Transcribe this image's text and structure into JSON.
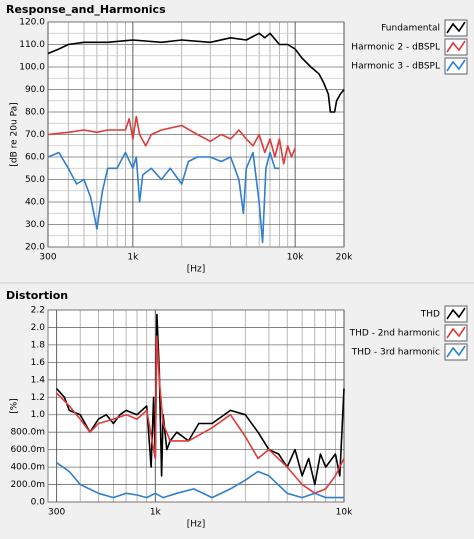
{
  "chart_data": [
    {
      "type": "line",
      "title": "Response_and_Harmonics",
      "xlabel": "[Hz]",
      "ylabel": "[dB re 20u Pa]",
      "xscale": "log",
      "xlim": [
        300,
        20000
      ],
      "ylim": [
        20,
        120
      ],
      "xticks": [
        300,
        {
          "value": 1000,
          "label": "1k"
        },
        {
          "value": 10000,
          "label": "10k"
        },
        {
          "value": 20000,
          "label": "20k"
        }
      ],
      "yticks": [
        {
          "value": 20,
          "label": "20.0"
        },
        {
          "value": 30,
          "label": "30.0"
        },
        {
          "value": 40,
          "label": "40.0"
        },
        {
          "value": 50,
          "label": "50.0"
        },
        {
          "value": 60,
          "label": "60.0"
        },
        {
          "value": 70,
          "label": "70.0"
        },
        {
          "value": 80,
          "label": "80.0"
        },
        {
          "value": 90,
          "label": "90.0"
        },
        {
          "value": 100,
          "label": "100.0"
        },
        {
          "value": 110,
          "label": "110.0"
        },
        {
          "value": 120,
          "label": "120.0"
        }
      ],
      "xgrid_minor": [
        400,
        500,
        600,
        700,
        800,
        900,
        2000,
        3000,
        4000,
        5000,
        6000,
        7000,
        8000,
        9000
      ],
      "ygrid_minor": [
        25,
        35,
        45,
        55,
        65,
        75,
        85,
        95,
        105,
        115
      ],
      "grid": true,
      "legend": "outside-right",
      "series": [
        {
          "name": "Fundamental",
          "color": "#000000",
          "x": [
            300,
            350,
            400,
            500,
            700,
            1000,
            1500,
            2000,
            3000,
            4000,
            5000,
            6000,
            6500,
            7000,
            8000,
            9000,
            10000,
            11000,
            12500,
            14000,
            15000,
            16000,
            16500,
            17500,
            18000,
            19000,
            20000
          ],
          "values": [
            106,
            108,
            110,
            111,
            111,
            112,
            111,
            112,
            111,
            113,
            112,
            115,
            113,
            115,
            110,
            110,
            108,
            104,
            100,
            97,
            93,
            88,
            80,
            80,
            85,
            88,
            90
          ]
        },
        {
          "name": "Harmonic 2 - dBSPL",
          "color": "#e03a3a",
          "x": [
            300,
            400,
            500,
            600,
            700,
            800,
            900,
            950,
            1000,
            1050,
            1100,
            1200,
            1300,
            1500,
            2000,
            2500,
            3000,
            3500,
            4000,
            4500,
            5000,
            5500,
            6000,
            6500,
            7000,
            7500,
            8000,
            8500,
            9000,
            9500,
            10000
          ],
          "values": [
            70,
            71,
            72,
            71,
            72,
            72,
            72,
            77,
            68,
            78,
            70,
            65,
            70,
            72,
            74,
            70,
            67,
            70,
            68,
            72,
            68,
            65,
            70,
            62,
            68,
            60,
            68,
            57,
            65,
            60,
            64
          ]
        },
        {
          "name": "Harmonic 3 - dBSPL",
          "color": "#2f7fcf",
          "x": [
            300,
            350,
            400,
            450,
            500,
            550,
            600,
            650,
            700,
            800,
            900,
            1000,
            1050,
            1100,
            1150,
            1300,
            1500,
            1700,
            2000,
            2200,
            2500,
            3000,
            3500,
            4000,
            4500,
            4800,
            5000,
            5500,
            6000,
            6300,
            6600,
            7000,
            7500,
            8000
          ],
          "values": [
            60,
            62,
            55,
            48,
            50,
            42,
            28,
            45,
            55,
            55,
            62,
            55,
            60,
            40,
            52,
            55,
            50,
            55,
            48,
            58,
            60,
            60,
            58,
            60,
            50,
            35,
            55,
            62,
            40,
            22,
            55,
            62,
            55,
            55
          ]
        }
      ]
    },
    {
      "type": "line",
      "title": "Distortion",
      "xlabel": "[Hz]",
      "ylabel": "[%]",
      "xscale": "log",
      "xlim": [
        270,
        10000
      ],
      "ylim": [
        0,
        2.2
      ],
      "xticks": [
        300,
        {
          "value": 1000,
          "label": "1k"
        },
        {
          "value": 10000,
          "label": "10k"
        }
      ],
      "yticks": [
        {
          "value": 0,
          "label": "0.0"
        },
        {
          "value": 0.2,
          "label": "200.0m"
        },
        {
          "value": 0.4,
          "label": "400.0m"
        },
        {
          "value": 0.6,
          "label": "600.0m"
        },
        {
          "value": 0.8,
          "label": "800.0m"
        },
        {
          "value": 1,
          "label": "1.0"
        },
        {
          "value": 1.2,
          "label": "1.2"
        },
        {
          "value": 1.4,
          "label": "1.4"
        },
        {
          "value": 1.6,
          "label": "1.6"
        },
        {
          "value": 1.8,
          "label": "1.8"
        },
        {
          "value": 2,
          "label": "2.0"
        },
        {
          "value": 2.2,
          "label": "2.2"
        }
      ],
      "xgrid_minor": [
        400,
        500,
        600,
        700,
        800,
        900,
        2000,
        3000,
        4000,
        5000,
        6000,
        7000,
        8000,
        9000
      ],
      "ygrid_minor": [],
      "grid": true,
      "legend": "outside-right",
      "series": [
        {
          "name": "THD",
          "color": "#000000",
          "x": [
            300,
            330,
            350,
            400,
            450,
            500,
            550,
            600,
            650,
            700,
            800,
            900,
            950,
            980,
            1000,
            1020,
            1050,
            1080,
            1100,
            1150,
            1200,
            1300,
            1500,
            1700,
            2000,
            2500,
            3000,
            3500,
            4000,
            4500,
            5000,
            5500,
            6000,
            6500,
            7000,
            7500,
            8000,
            9000,
            9500,
            10000
          ],
          "values": [
            1.3,
            1.2,
            1.05,
            1.0,
            0.8,
            0.95,
            1.0,
            0.9,
            1.0,
            1.05,
            1.0,
            1.1,
            0.4,
            1.2,
            0.5,
            2.15,
            1.5,
            0.3,
            1.0,
            0.6,
            0.7,
            0.8,
            0.7,
            0.9,
            0.9,
            1.05,
            1.0,
            0.8,
            0.6,
            0.55,
            0.4,
            0.6,
            0.3,
            0.5,
            0.2,
            0.55,
            0.4,
            0.55,
            0.3,
            1.3
          ]
        },
        {
          "name": "THD - 2nd harmonic",
          "color": "#e03a3a",
          "x": [
            300,
            350,
            400,
            450,
            500,
            600,
            700,
            800,
            900,
            1000,
            1020,
            1050,
            1100,
            1200,
            1500,
            2000,
            2500,
            3000,
            3500,
            4000,
            5000,
            6000,
            7000,
            8000,
            9000,
            10000
          ],
          "values": [
            1.25,
            1.1,
            0.95,
            0.8,
            0.9,
            0.95,
            1.0,
            0.95,
            1.05,
            0.5,
            1.9,
            1.4,
            0.9,
            0.7,
            0.7,
            0.85,
            1.0,
            0.75,
            0.5,
            0.6,
            0.4,
            0.2,
            0.1,
            0.15,
            0.3,
            0.5
          ]
        },
        {
          "name": "THD - 3rd harmonic",
          "color": "#2f7fcf",
          "x": [
            300,
            350,
            400,
            500,
            600,
            700,
            800,
            900,
            1000,
            1100,
            1300,
            1600,
            2000,
            2500,
            3000,
            3500,
            4000,
            5000,
            6000,
            7000,
            8000,
            10000
          ],
          "values": [
            0.45,
            0.35,
            0.2,
            0.1,
            0.05,
            0.1,
            0.08,
            0.05,
            0.1,
            0.05,
            0.1,
            0.15,
            0.05,
            0.15,
            0.25,
            0.35,
            0.3,
            0.1,
            0.05,
            0.1,
            0.05,
            0.05
          ]
        }
      ]
    }
  ]
}
